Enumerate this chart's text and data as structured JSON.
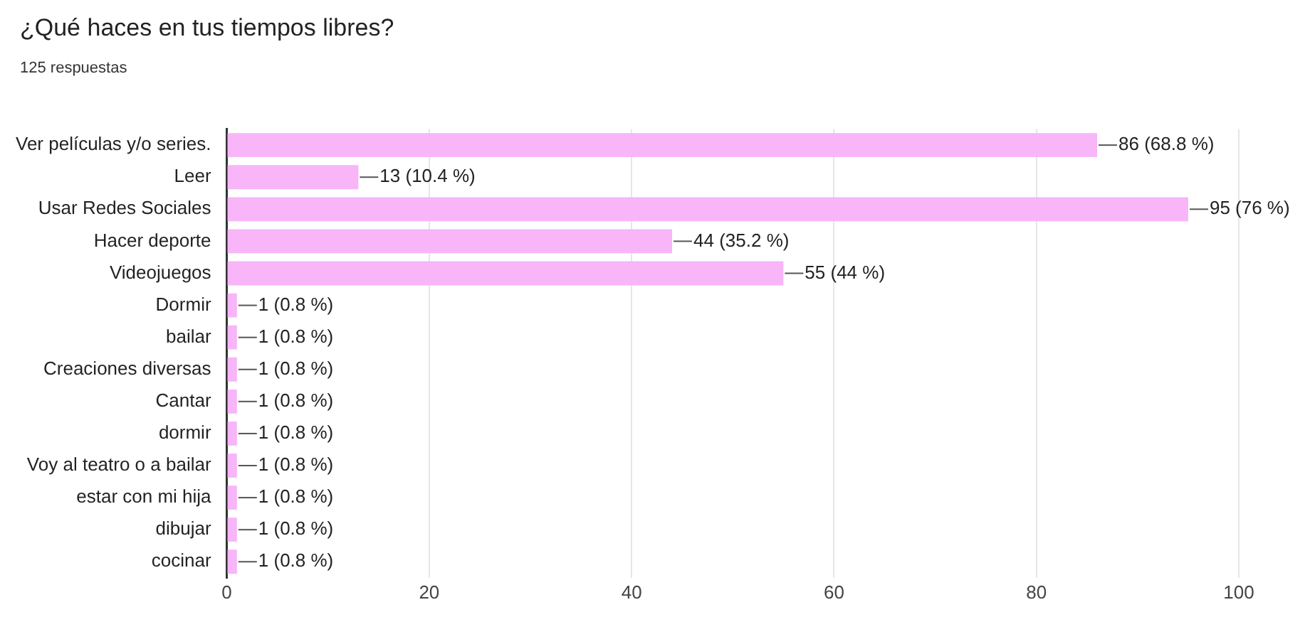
{
  "chart_data": {
    "type": "bar",
    "orientation": "horizontal",
    "title": "¿Qué haces en tus tiempos libres?",
    "subtitle": "125 respuestas",
    "categories": [
      "Ver películas y/o series.",
      "Leer",
      "Usar Redes Sociales",
      "Hacer deporte",
      "Videojuegos",
      "Dormir",
      "bailar",
      "Creaciones diversas",
      "Cantar",
      "dormir",
      "Voy al teatro o a bailar",
      "estar con mi hija",
      "dibujar",
      "cocinar"
    ],
    "values": [
      86,
      13,
      95,
      44,
      55,
      1,
      1,
      1,
      1,
      1,
      1,
      1,
      1,
      1
    ],
    "value_labels": [
      "86 (68.8 %)",
      "13 (10.4 %)",
      "95 (76 %)",
      "44 (35.2 %)",
      "55 (44 %)",
      "1 (0.8 %)",
      "1 (0.8 %)",
      "1 (0.8 %)",
      "1 (0.8 %)",
      "1 (0.8 %)",
      "1 (0.8 %)",
      "1 (0.8 %)",
      "1 (0.8 %)",
      "1 (0.8 %)"
    ],
    "color": "#f8b5f8",
    "xlim": [
      0,
      100
    ],
    "xticks": [
      0,
      20,
      40,
      60,
      80,
      100
    ],
    "grid": "x",
    "legend": false
  }
}
